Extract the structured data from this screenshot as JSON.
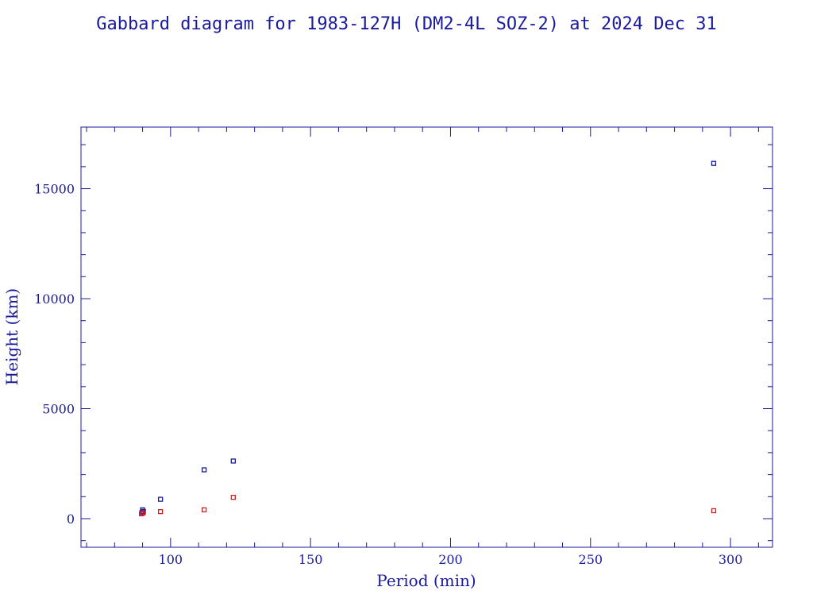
{
  "chart_data": {
    "type": "scatter",
    "title": "Gabbard diagram for 1983-127H (DM2-4L SOZ-2) at 2024 Dec 31",
    "xlabel": "Period (min)",
    "ylabel": "Height (km)",
    "xlim": [
      68,
      315
    ],
    "ylim": [
      -1300,
      17800
    ],
    "x_ticks": [
      100,
      150,
      200,
      250,
      300
    ],
    "y_ticks": [
      0,
      5000,
      10000,
      15000
    ],
    "x_minor_step": 10,
    "y_minor_step": 1000,
    "grid": false,
    "legend": "none",
    "series": [
      {
        "color": "#1a1a9c",
        "points": [
          {
            "x": 90.0,
            "y": 400
          },
          {
            "x": 90.3,
            "y": 330
          },
          {
            "x": 89.8,
            "y": 280
          },
          {
            "x": 96.4,
            "y": 880
          },
          {
            "x": 112.0,
            "y": 2220
          },
          {
            "x": 122.4,
            "y": 2620
          },
          {
            "x": 294.0,
            "y": 16150
          }
        ]
      },
      {
        "color": "#cc2222",
        "points": [
          {
            "x": 89.6,
            "y": 220
          },
          {
            "x": 90.2,
            "y": 260
          },
          {
            "x": 96.4,
            "y": 320
          },
          {
            "x": 112.0,
            "y": 400
          },
          {
            "x": 122.4,
            "y": 970
          },
          {
            "x": 294.0,
            "y": 360
          }
        ]
      }
    ]
  }
}
